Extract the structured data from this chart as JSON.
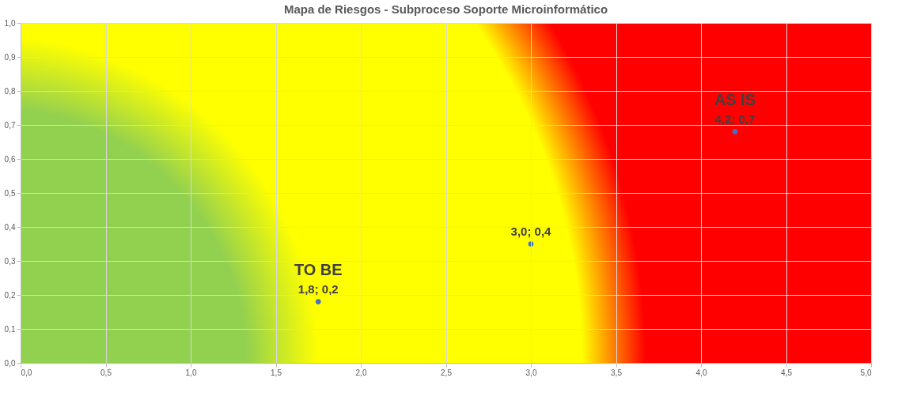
{
  "chart_data": {
    "type": "scatter",
    "title": "Mapa de Riesgos - Subproceso Soporte Microinformático",
    "x": [
      1.75,
      3.0,
      4.2
    ],
    "series": [
      {
        "color": "#4472c4",
        "values": [
          0.18,
          0.35,
          0.68
        ],
        "value_labels": [
          "1,8; 0,2",
          "3,0; 0,4",
          "4,2; 0,7"
        ]
      }
    ],
    "annotations": [
      {
        "text": "TO BE",
        "x": 1.75,
        "y": 0.18
      },
      {
        "text": "AS IS",
        "x": 4.2,
        "y": 0.68
      }
    ],
    "xlim": [
      0,
      5
    ],
    "ylim": [
      0,
      1
    ],
    "xticks": [
      {
        "value": 0,
        "label": "0,0"
      },
      {
        "value": 0.5,
        "label": "0,5"
      },
      {
        "value": 1,
        "label": "1,0"
      },
      {
        "value": 1.5,
        "label": "1,5"
      },
      {
        "value": 2,
        "label": "2,0"
      },
      {
        "value": 2.5,
        "label": "2,5"
      },
      {
        "value": 3,
        "label": "3,0"
      },
      {
        "value": 3.5,
        "label": "3,5"
      },
      {
        "value": 4,
        "label": "4,0"
      },
      {
        "value": 4.5,
        "label": "4,5"
      },
      {
        "value": 5,
        "label": "5,0"
      }
    ],
    "yticks": [
      {
        "value": 0,
        "label": "0,0"
      },
      {
        "value": 0.1,
        "label": "0,1"
      },
      {
        "value": 0.2,
        "label": "0,2"
      },
      {
        "value": 0.3,
        "label": "0,3"
      },
      {
        "value": 0.4,
        "label": "0,4"
      },
      {
        "value": 0.5,
        "label": "0,5"
      },
      {
        "value": 0.6,
        "label": "0,6"
      },
      {
        "value": 0.7,
        "label": "0,7"
      },
      {
        "value": 0.8,
        "label": "0,8"
      },
      {
        "value": 0.9,
        "label": "0,9"
      },
      {
        "value": 1,
        "label": "1,0"
      }
    ],
    "grid": true,
    "marker": "circle"
  }
}
